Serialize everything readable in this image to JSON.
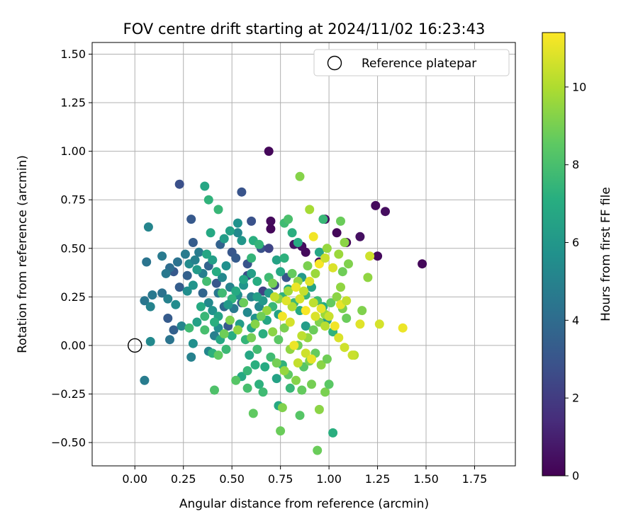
{
  "chart_data": {
    "type": "scatter",
    "title": "FOV centre drift starting at 2024/11/02 16:23:43",
    "xlabel": "Angular distance from reference (arcmin)",
    "ylabel": "Rotation from reference (arcmin)",
    "xlim": [
      -0.22,
      1.96
    ],
    "ylim": [
      -0.62,
      1.56
    ],
    "xticks": [
      0.0,
      0.25,
      0.5,
      0.75,
      1.0,
      1.25,
      1.5,
      1.75
    ],
    "xtick_labels": [
      "0.00",
      "0.25",
      "0.50",
      "0.75",
      "1.00",
      "1.25",
      "1.50",
      "1.75"
    ],
    "yticks": [
      -0.5,
      -0.25,
      0.0,
      0.25,
      0.5,
      0.75,
      1.0,
      1.25,
      1.5
    ],
    "ytick_labels": [
      "−0.50",
      "−0.25",
      "0.00",
      "0.25",
      "0.50",
      "0.75",
      "1.00",
      "1.25",
      "1.50"
    ],
    "grid": true,
    "legend": {
      "position": "top-right",
      "entries": [
        {
          "label": "Reference platepar",
          "marker": "open-circle"
        }
      ]
    },
    "reference_point": {
      "x": 0.0,
      "y": 0.0
    },
    "colorbar": {
      "label": "Hours from first FF file",
      "colormap": "viridis",
      "range": [
        0,
        11.4
      ],
      "ticks": [
        0,
        2,
        4,
        6,
        8,
        10
      ],
      "tick_labels": [
        "0",
        "2",
        "4",
        "6",
        "8",
        "10"
      ]
    },
    "points": [
      [
        0.69,
        1.0,
        0.2
      ],
      [
        1.24,
        0.72,
        0.3
      ],
      [
        1.29,
        0.69,
        0.4
      ],
      [
        1.48,
        0.42,
        0.2
      ],
      [
        1.25,
        0.46,
        0.3
      ],
      [
        1.16,
        0.56,
        0.5
      ],
      [
        1.09,
        0.53,
        0.3
      ],
      [
        1.04,
        0.58,
        0.2
      ],
      [
        0.98,
        0.65,
        0.4
      ],
      [
        0.7,
        0.64,
        0.3
      ],
      [
        0.7,
        0.6,
        0.2
      ],
      [
        0.88,
        0.48,
        0.3
      ],
      [
        0.95,
        0.43,
        0.5
      ],
      [
        0.82,
        0.52,
        0.6
      ],
      [
        0.86,
        0.51,
        0.4
      ],
      [
        0.23,
        0.83,
        2.8
      ],
      [
        0.55,
        0.79,
        3.0
      ],
      [
        0.29,
        0.65,
        3.2
      ],
      [
        0.6,
        0.64,
        2.9
      ],
      [
        0.3,
        0.53,
        3.4
      ],
      [
        0.44,
        0.52,
        3.6
      ],
      [
        0.5,
        0.48,
        3.1
      ],
      [
        0.52,
        0.45,
        3.3
      ],
      [
        0.65,
        0.5,
        2.9
      ],
      [
        0.69,
        0.5,
        2.4
      ],
      [
        0.58,
        0.42,
        3.0
      ],
      [
        0.27,
        0.36,
        3.5
      ],
      [
        0.2,
        0.38,
        3.2
      ],
      [
        0.23,
        0.3,
        3.4
      ],
      [
        0.38,
        0.41,
        3.7
      ],
      [
        0.42,
        0.32,
        3.1
      ],
      [
        0.58,
        0.36,
        2.7
      ],
      [
        0.66,
        0.28,
        2.3
      ],
      [
        0.72,
        0.31,
        2.6
      ],
      [
        0.78,
        0.35,
        3.0
      ],
      [
        0.17,
        0.14,
        3.3
      ],
      [
        0.2,
        0.08,
        3.5
      ],
      [
        0.48,
        0.1,
        3.2
      ],
      [
        0.46,
        0.2,
        3.9
      ],
      [
        0.55,
        0.22,
        3.6
      ],
      [
        0.35,
        0.27,
        3.8
      ],
      [
        0.14,
        0.27,
        4.3
      ],
      [
        0.09,
        0.26,
        4.6
      ],
      [
        0.06,
        0.43,
        4.4
      ],
      [
        0.07,
        0.61,
        5.2
      ],
      [
        0.14,
        0.46,
        4.7
      ],
      [
        0.18,
        0.4,
        4.1
      ],
      [
        0.16,
        0.37,
        4.6
      ],
      [
        0.22,
        0.43,
        4.3
      ],
      [
        0.26,
        0.47,
        4.8
      ],
      [
        0.05,
        0.23,
        4.5
      ],
      [
        0.08,
        0.2,
        5.1
      ],
      [
        0.17,
        0.24,
        5.0
      ],
      [
        0.21,
        0.21,
        5.5
      ],
      [
        0.24,
        0.1,
        5.2
      ],
      [
        0.27,
        0.28,
        5.6
      ],
      [
        0.3,
        0.31,
        5.9
      ],
      [
        0.28,
        0.42,
        5.5
      ],
      [
        0.31,
        0.44,
        5.0
      ],
      [
        0.33,
        0.48,
        4.8
      ],
      [
        0.35,
        0.37,
        4.9
      ],
      [
        0.38,
        0.22,
        5.4
      ],
      [
        0.4,
        0.18,
        5.8
      ],
      [
        0.43,
        0.27,
        4.6
      ],
      [
        0.45,
        0.35,
        5.3
      ],
      [
        0.47,
        0.41,
        5.7
      ],
      [
        0.49,
        0.3,
        5.1
      ],
      [
        0.51,
        0.19,
        4.7
      ],
      [
        0.53,
        0.26,
        5.6
      ],
      [
        0.56,
        0.31,
        5.9
      ],
      [
        0.58,
        0.17,
        5.4
      ],
      [
        0.6,
        0.25,
        5.0
      ],
      [
        0.62,
        0.14,
        5.8
      ],
      [
        0.64,
        0.2,
        5.3
      ],
      [
        0.66,
        0.23,
        6.1
      ],
      [
        0.41,
        0.05,
        4.9
      ],
      [
        0.43,
        0.09,
        5.6
      ],
      [
        0.38,
        -0.03,
        5.3
      ],
      [
        0.29,
        -0.06,
        5.0
      ],
      [
        0.3,
        0.01,
        5.7
      ],
      [
        0.08,
        0.02,
        5.4
      ],
      [
        0.18,
        0.03,
        4.4
      ],
      [
        0.05,
        -0.18,
        4.8
      ],
      [
        0.53,
        0.58,
        5.4
      ],
      [
        0.53,
        0.63,
        5.8
      ],
      [
        0.36,
        0.82,
        6.8
      ],
      [
        0.38,
        0.75,
        7.4
      ],
      [
        0.43,
        0.7,
        7.6
      ],
      [
        0.39,
        0.58,
        6.9
      ],
      [
        0.46,
        0.55,
        6.3
      ],
      [
        0.49,
        0.59,
        6.5
      ],
      [
        0.55,
        0.54,
        6.0
      ],
      [
        0.61,
        0.54,
        7.2
      ],
      [
        0.64,
        0.52,
        7.5
      ],
      [
        0.77,
        0.63,
        7.8
      ],
      [
        0.79,
        0.65,
        8.1
      ],
      [
        0.81,
        0.58,
        7.2
      ],
      [
        0.84,
        0.53,
        7.0
      ],
      [
        0.95,
        0.48,
        6.8
      ],
      [
        0.97,
        0.65,
        7.6
      ],
      [
        0.73,
        0.44,
        6.6
      ],
      [
        0.77,
        0.45,
        7.3
      ],
      [
        0.75,
        0.38,
        6.9
      ],
      [
        0.69,
        0.35,
        7.8
      ],
      [
        0.63,
        0.33,
        7.1
      ],
      [
        0.6,
        0.37,
        6.4
      ],
      [
        0.56,
        0.34,
        6.7
      ],
      [
        0.52,
        0.28,
        7.0
      ],
      [
        0.5,
        0.24,
        7.4
      ],
      [
        0.48,
        0.21,
        6.2
      ],
      [
        0.45,
        0.27,
        7.8
      ],
      [
        0.43,
        0.15,
        6.6
      ],
      [
        0.41,
        0.12,
        7.2
      ],
      [
        0.36,
        0.15,
        7.6
      ],
      [
        0.34,
        0.2,
        7.0
      ],
      [
        0.32,
        0.12,
        6.5
      ],
      [
        0.28,
        0.09,
        7.8
      ],
      [
        0.36,
        0.08,
        8.0
      ],
      [
        0.4,
        -0.04,
        7.3
      ],
      [
        0.44,
        0.03,
        6.9
      ],
      [
        0.47,
        -0.02,
        7.7
      ],
      [
        0.5,
        0.05,
        7.1
      ],
      [
        0.54,
        0.11,
        6.3
      ],
      [
        0.57,
        0.03,
        7.5
      ],
      [
        0.6,
        0.09,
        6.7
      ],
      [
        0.63,
        -0.02,
        7.9
      ],
      [
        0.66,
        0.06,
        7.2
      ],
      [
        0.68,
        0.13,
        6.8
      ],
      [
        0.71,
        0.2,
        7.6
      ],
      [
        0.74,
        0.16,
        6.5
      ],
      [
        0.76,
        0.25,
        7.3
      ],
      [
        0.79,
        0.29,
        6.9
      ],
      [
        0.82,
        0.22,
        7.7
      ],
      [
        0.85,
        0.18,
        7.0
      ],
      [
        0.88,
        0.26,
        7.5
      ],
      [
        0.91,
        0.3,
        6.6
      ],
      [
        0.94,
        0.23,
        7.8
      ],
      [
        0.97,
        0.2,
        7.1
      ],
      [
        0.99,
        0.13,
        6.4
      ],
      [
        1.02,
        0.07,
        7.4
      ],
      [
        0.59,
        -0.05,
        6.8
      ],
      [
        0.62,
        -0.1,
        7.2
      ],
      [
        0.55,
        -0.16,
        6.9
      ],
      [
        0.58,
        -0.13,
        7.6
      ],
      [
        0.64,
        -0.2,
        7.3
      ],
      [
        0.67,
        -0.11,
        7.0
      ],
      [
        0.7,
        -0.06,
        7.8
      ],
      [
        0.73,
        -0.17,
        6.6
      ],
      [
        0.76,
        -0.1,
        7.4
      ],
      [
        0.74,
        -0.31,
        6.9
      ],
      [
        1.02,
        -0.45,
        7.2
      ],
      [
        0.8,
        -0.22,
        7.6
      ],
      [
        0.66,
        -0.24,
        7.8
      ],
      [
        0.6,
        0.45,
        7.5
      ],
      [
        0.4,
        0.44,
        6.4
      ],
      [
        0.37,
        0.47,
        6.8
      ],
      [
        0.42,
        0.38,
        7.1
      ],
      [
        0.32,
        0.39,
        6.2
      ],
      [
        0.37,
        0.33,
        7.9
      ],
      [
        0.69,
        0.27,
        6.1
      ],
      [
        0.86,
        0.35,
        6.2
      ],
      [
        0.88,
        0.1,
        6.3
      ],
      [
        0.63,
        0.25,
        6.4
      ],
      [
        0.41,
        -0.23,
        8.2
      ],
      [
        0.52,
        -0.18,
        8.4
      ],
      [
        0.58,
        -0.22,
        8.0
      ],
      [
        0.61,
        -0.35,
        8.6
      ],
      [
        0.75,
        -0.44,
        8.8
      ],
      [
        0.76,
        -0.32,
        9.2
      ],
      [
        0.85,
        -0.36,
        8.4
      ],
      [
        0.86,
        -0.23,
        8.7
      ],
      [
        0.91,
        -0.2,
        9.0
      ],
      [
        0.95,
        -0.33,
        9.4
      ],
      [
        0.98,
        -0.24,
        9.1
      ],
      [
        0.94,
        -0.54,
        8.8
      ],
      [
        1.0,
        -0.2,
        8.5
      ],
      [
        0.83,
        -0.18,
        9.3
      ],
      [
        0.79,
        -0.15,
        8.6
      ],
      [
        0.77,
        -0.13,
        9.6
      ],
      [
        0.73,
        -0.09,
        9.0
      ],
      [
        0.87,
        -0.11,
        8.4
      ],
      [
        0.9,
        -0.08,
        9.1
      ],
      [
        0.93,
        -0.04,
        8.7
      ],
      [
        0.96,
        -0.1,
        9.4
      ],
      [
        0.99,
        -0.07,
        8.9
      ],
      [
        0.8,
        -0.02,
        9.5
      ],
      [
        0.84,
        0.0,
        8.9
      ],
      [
        0.89,
        0.04,
        9.6
      ],
      [
        0.92,
        0.08,
        8.8
      ],
      [
        0.95,
        0.12,
        9.2
      ],
      [
        0.98,
        0.16,
        9.7
      ],
      [
        1.01,
        0.22,
        8.7
      ],
      [
        1.04,
        0.25,
        9.4
      ],
      [
        1.07,
        0.19,
        9.1
      ],
      [
        1.09,
        0.14,
        8.8
      ],
      [
        1.06,
        0.3,
        9.5
      ],
      [
        1.1,
        0.42,
        9.2
      ],
      [
        1.07,
        0.38,
        8.9
      ],
      [
        1.05,
        0.47,
        9.7
      ],
      [
        1.08,
        0.53,
        9.4
      ],
      [
        1.06,
        0.64,
        8.8
      ],
      [
        0.99,
        0.5,
        9.6
      ],
      [
        0.9,
        0.7,
        9.9
      ],
      [
        0.85,
        0.87,
        9.3
      ],
      [
        0.93,
        0.37,
        9.7
      ],
      [
        0.89,
        0.41,
        9.1
      ],
      [
        0.84,
        0.33,
        9.5
      ],
      [
        0.81,
        0.37,
        8.7
      ],
      [
        0.79,
        0.28,
        9.8
      ],
      [
        0.74,
        0.24,
        9.4
      ],
      [
        0.71,
        0.32,
        9.0
      ],
      [
        0.68,
        0.18,
        9.6
      ],
      [
        0.65,
        0.15,
        8.9
      ],
      [
        0.62,
        0.11,
        9.3
      ],
      [
        0.6,
        0.04,
        9.0
      ],
      [
        0.56,
        0.22,
        8.8
      ],
      [
        0.53,
        0.08,
        9.5
      ],
      [
        0.49,
        0.13,
        9.2
      ],
      [
        0.46,
        0.06,
        8.9
      ],
      [
        0.43,
        -0.05,
        8.6
      ],
      [
        0.71,
        0.07,
        9.4
      ],
      [
        0.74,
        0.03,
        8.5
      ],
      [
        0.77,
        0.09,
        9.1
      ],
      [
        1.2,
        0.35,
        9.5
      ],
      [
        1.17,
        0.18,
        9.2
      ],
      [
        1.13,
        -0.05,
        10.2
      ],
      [
        1.08,
        -0.01,
        10.6
      ],
      [
        1.05,
        0.04,
        10.8
      ],
      [
        1.03,
        0.1,
        11.2
      ],
      [
        1.0,
        0.15,
        10.5
      ],
      [
        0.96,
        0.19,
        11.0
      ],
      [
        0.92,
        0.22,
        10.3
      ],
      [
        0.88,
        0.18,
        11.3
      ],
      [
        0.85,
        0.24,
        10.7
      ],
      [
        0.83,
        0.3,
        11.1
      ],
      [
        0.87,
        0.28,
        10.4
      ],
      [
        0.9,
        0.33,
        10.9
      ],
      [
        0.95,
        0.42,
        11.3
      ],
      [
        0.98,
        0.45,
        10.5
      ],
      [
        1.02,
        0.4,
        10.8
      ],
      [
        0.92,
        0.56,
        11.2
      ],
      [
        1.21,
        0.46,
        10.6
      ],
      [
        1.16,
        0.11,
        10.9
      ],
      [
        1.26,
        0.11,
        10.7
      ],
      [
        1.38,
        0.09,
        11.1
      ],
      [
        1.06,
        0.21,
        11.0
      ],
      [
        1.09,
        0.23,
        10.4
      ],
      [
        1.12,
        -0.05,
        10.5
      ],
      [
        0.86,
        0.05,
        10.3
      ],
      [
        0.82,
        0.0,
        11.1
      ],
      [
        0.88,
        -0.04,
        10.6
      ],
      [
        0.91,
        -0.07,
        11.0
      ],
      [
        0.84,
        -0.09,
        10.4
      ],
      [
        0.8,
        0.12,
        10.7
      ],
      [
        0.76,
        0.15,
        11.2
      ],
      [
        0.81,
        0.2,
        10.1
      ],
      [
        0.78,
        0.23,
        10.9
      ],
      [
        0.72,
        0.25,
        10.4
      ],
      [
        0.93,
        0.15,
        10.8
      ],
      [
        0.98,
        0.1,
        10.2
      ]
    ]
  }
}
